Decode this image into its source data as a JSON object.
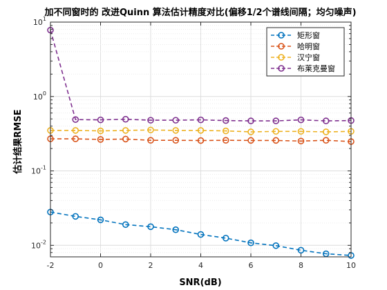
{
  "chart_data": {
    "type": "line",
    "title": "加不同窗时的 改进Quinn 算法估计精度对比(偏移1/2个谱线间隔；均匀噪声)",
    "xlabel": "SNR(dB)",
    "ylabel": "估计结果RMSE",
    "xlim": [
      -2,
      10
    ],
    "ylim": [
      0.007,
      10
    ],
    "yscale": "log",
    "grid": true,
    "legend_position": "top-right",
    "x_ticks": [
      "-2",
      "0",
      "2",
      "4",
      "6",
      "8",
      "10"
    ],
    "y_ticks": [
      {
        "base": "10",
        "exp": "-2"
      },
      {
        "base": "10",
        "exp": "-1"
      },
      {
        "base": "10",
        "exp": "0"
      },
      {
        "base": "10",
        "exp": "1"
      }
    ],
    "x": [
      -2,
      -1,
      0,
      1,
      2,
      3,
      4,
      5,
      6,
      7,
      8,
      9,
      10
    ],
    "series": [
      {
        "name": "矩形窗",
        "color": "#0072BD",
        "values": [
          0.028,
          0.0245,
          0.022,
          0.019,
          0.0178,
          0.0162,
          0.014,
          0.0125,
          0.0108,
          0.0099,
          0.0086,
          0.0077,
          0.0073
        ]
      },
      {
        "name": "哈明窗",
        "color": "#D95319",
        "values": [
          0.27,
          0.27,
          0.265,
          0.268,
          0.258,
          0.258,
          0.256,
          0.258,
          0.257,
          0.257,
          0.252,
          0.258,
          0.248
        ]
      },
      {
        "name": "汉宁窗",
        "color": "#EDB120",
        "values": [
          0.35,
          0.35,
          0.345,
          0.35,
          0.355,
          0.35,
          0.35,
          0.345,
          0.335,
          0.34,
          0.34,
          0.335,
          0.34
        ]
      },
      {
        "name": "布莱克曼窗",
        "color": "#7E2F8E",
        "values": [
          7.8,
          0.49,
          0.485,
          0.495,
          0.48,
          0.48,
          0.485,
          0.475,
          0.47,
          0.47,
          0.485,
          0.47,
          0.475
        ]
      }
    ]
  }
}
